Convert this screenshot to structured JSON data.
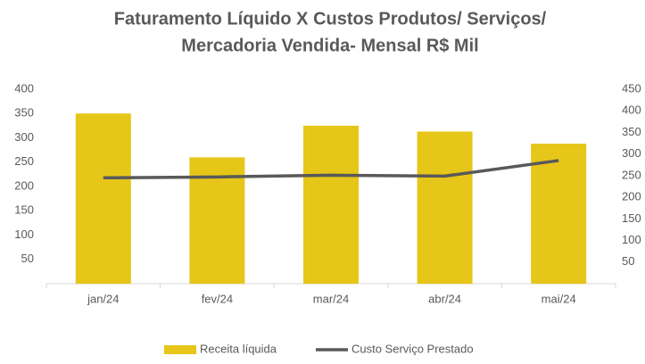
{
  "chart_data": {
    "type": "bar_line",
    "title_lines": [
      "Faturamento Líquido X Custos Produtos/ Serviços/",
      "Mercadoria Vendida- Mensal R$ Mil"
    ],
    "categories": [
      "jan/24",
      "fev/24",
      "mar/24",
      "abr/24",
      "mai/24"
    ],
    "series": [
      {
        "name": "Receita líquida",
        "color": "#e6c619",
        "type": "bar",
        "values": [
          350,
          260,
          325,
          313,
          288
        ]
      },
      {
        "name": "Custo Serviço Prestado",
        "color": "#595959",
        "type": "line",
        "axis": "y2",
        "values": [
          245,
          247,
          251,
          249,
          285
        ]
      }
    ],
    "ylim": [
      0,
      400
    ],
    "yticks": [
      50,
      100,
      150,
      200,
      250,
      300,
      350,
      400
    ],
    "y2lim": [
      0,
      450
    ],
    "y2ticks": [
      50,
      100,
      150,
      200,
      250,
      300,
      350,
      400,
      450
    ]
  }
}
